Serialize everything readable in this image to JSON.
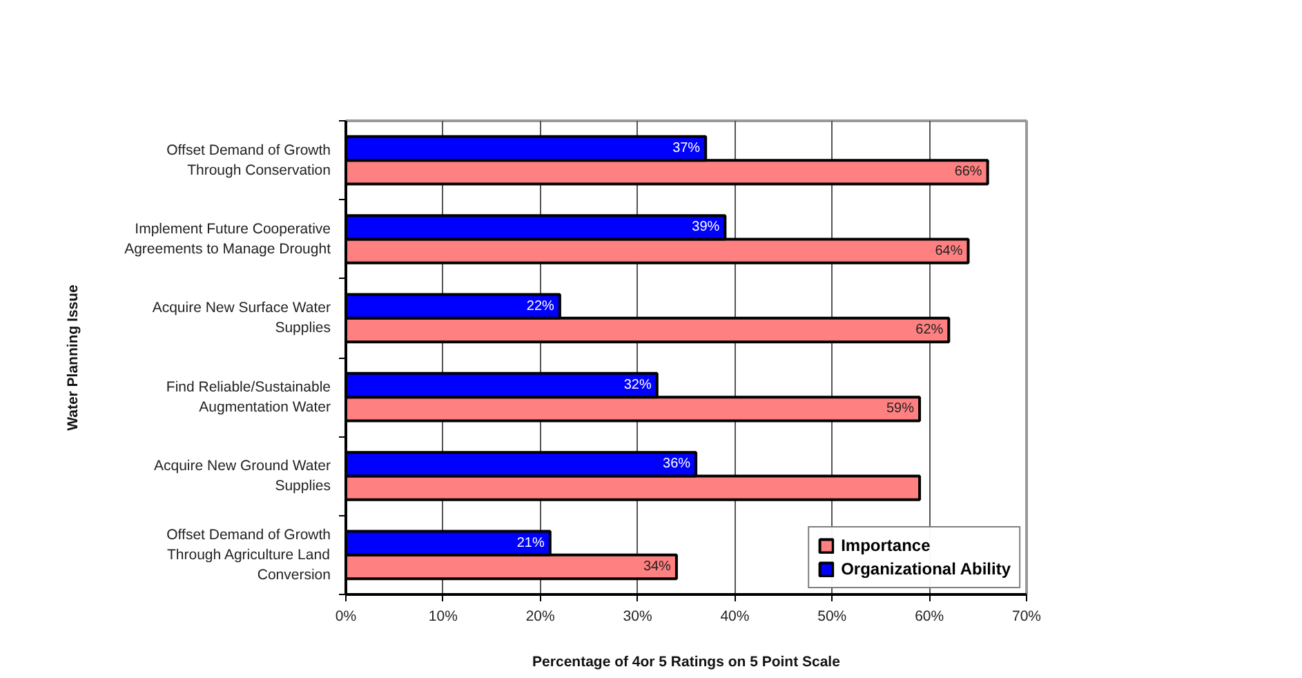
{
  "chart_data": {
    "type": "bar",
    "orientation": "horizontal",
    "categories": [
      "Offset Demand of Growth Through Conservation",
      "Implement Future Cooperative Agreements to Manage Drought",
      "Acquire New Surface Water Supplies",
      "Find Reliable/Sustainable Augmentation Water",
      "Acquire New Ground Water Supplies",
      "Offset Demand of Growth Through Agriculture Land Conversion"
    ],
    "series": [
      {
        "name": "Importance",
        "color": "#ff8080",
        "values": [
          66,
          64,
          62,
          59,
          59,
          34
        ],
        "value_labels": [
          "66%",
          "64%",
          "62%",
          "59%",
          null,
          "34%"
        ]
      },
      {
        "name": "Organizational Ability",
        "color": "#0000ff",
        "values": [
          37,
          39,
          22,
          32,
          36,
          21
        ],
        "value_labels": [
          "37%",
          "39%",
          "22%",
          "32%",
          "36%",
          "21%"
        ]
      }
    ],
    "xlabel": "Percentage of 4or 5 Ratings on 5 Point Scale",
    "ylabel": "Water Planning Issue",
    "xlim": [
      0,
      70
    ],
    "xticks": [
      {
        "value": 0,
        "label": "0%"
      },
      {
        "value": 10,
        "label": "10%"
      },
      {
        "value": 20,
        "label": "20%"
      },
      {
        "value": 30,
        "label": "30%"
      },
      {
        "value": 40,
        "label": "40%"
      },
      {
        "value": 50,
        "label": "50%"
      },
      {
        "value": 60,
        "label": "60%"
      },
      {
        "value": 70,
        "label": "70%"
      }
    ],
    "grid": "x",
    "legend": "bottom right"
  }
}
